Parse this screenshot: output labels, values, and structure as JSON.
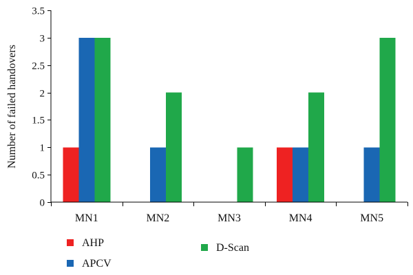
{
  "chart_data": {
    "type": "bar",
    "title": "",
    "xlabel": "",
    "ylabel": "Number of failed handovers",
    "categories": [
      "MN1",
      "MN2",
      "MN3",
      "MN4",
      "MN5"
    ],
    "series": [
      {
        "name": "AHP",
        "color": "#ee2222",
        "values": [
          1,
          0,
          0,
          1,
          0
        ]
      },
      {
        "name": "APCV",
        "color": "#1a67b3",
        "values": [
          3,
          1,
          0,
          1,
          1
        ]
      },
      {
        "name": "D-Scan",
        "color": "#20a84a",
        "values": [
          3,
          2,
          1,
          2,
          3
        ]
      }
    ],
    "ylim": [
      0,
      3.5
    ],
    "yticks": [
      0,
      0.5,
      1,
      1.5,
      2,
      2.5,
      3,
      3.5
    ],
    "ytick_labels": [
      "0",
      "0.5",
      "1",
      "1.5",
      "2",
      "2.5",
      "3",
      "3.5"
    ],
    "grid": false,
    "legend_position": "bottom"
  }
}
